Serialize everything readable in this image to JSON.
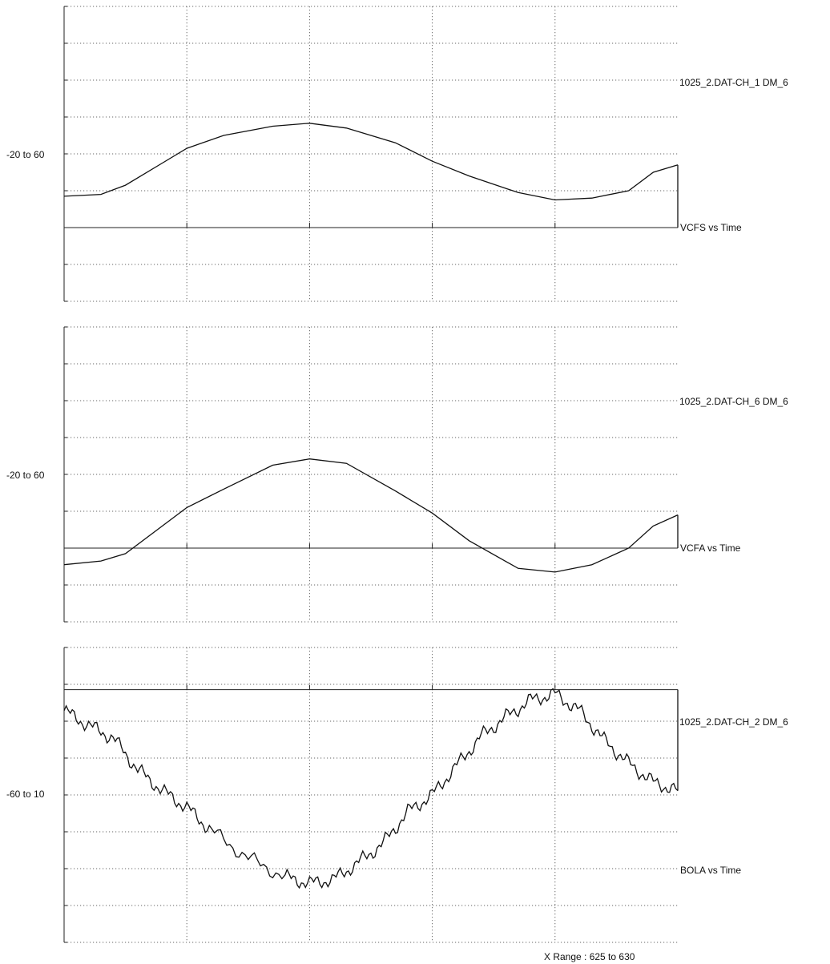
{
  "x_range_label": "X Range : 625 to 630",
  "panels": [
    {
      "range_label": "-20 to 60",
      "source_label": "1025_2.DAT-CH_1 DM_6",
      "title": "VCFS vs Time"
    },
    {
      "range_label": "-20 to 60",
      "source_label": "1025_2.DAT-CH_6 DM_6",
      "title": "VCFA vs Time"
    },
    {
      "range_label": "-60 to 10",
      "source_label": "1025_2.DAT-CH_2 DM_6",
      "title": "BOLA vs Time"
    }
  ],
  "chart_data": [
    {
      "type": "line",
      "title": "VCFS vs Time",
      "source": "1025_2.DAT-CH_1 DM_6",
      "xlim": [
        625,
        630
      ],
      "ylim": [
        -20,
        60
      ],
      "y_range_label": "-20 to 60",
      "grid": true,
      "baseline": 0,
      "x": [
        625.0,
        625.3,
        625.5,
        625.8,
        626.0,
        626.3,
        626.7,
        627.0,
        627.3,
        627.7,
        628.0,
        628.3,
        628.7,
        629.0,
        629.3,
        629.6,
        629.8,
        630.0
      ],
      "y": [
        8.5,
        9.0,
        11.5,
        17.5,
        21.5,
        25.0,
        27.5,
        28.3,
        27.0,
        23.0,
        18.0,
        14.0,
        9.5,
        7.5,
        8.0,
        10.0,
        15.0,
        17.0
      ]
    },
    {
      "type": "line",
      "title": "VCFA vs Time",
      "source": "1025_2.DAT-CH_6 DM_6",
      "xlim": [
        625,
        630
      ],
      "ylim": [
        -20,
        60
      ],
      "y_range_label": "-20 to 60",
      "grid": true,
      "baseline": 0,
      "x": [
        625.0,
        625.3,
        625.5,
        625.8,
        626.0,
        626.3,
        626.7,
        627.0,
        627.3,
        627.7,
        628.0,
        628.3,
        628.7,
        629.0,
        629.3,
        629.6,
        629.8,
        630.0
      ],
      "y": [
        -4.5,
        -3.5,
        -1.5,
        6.0,
        11.0,
        16.0,
        22.5,
        24.2,
        23.0,
        15.5,
        9.5,
        2.0,
        -5.5,
        -6.5,
        -4.5,
        0.0,
        6.0,
        9.0
      ]
    },
    {
      "type": "line",
      "title": "BOLA vs Time",
      "source": "1025_2.DAT-CH_2 DM_6",
      "xlim": [
        625,
        630
      ],
      "ylim": [
        -60,
        10
      ],
      "y_range_label": "-60 to 10",
      "grid": true,
      "baseline": 0,
      "x": [
        625.0,
        625.2,
        625.4,
        625.6,
        625.8,
        626.0,
        626.2,
        626.5,
        626.8,
        627.0,
        627.2,
        627.4,
        627.6,
        627.8,
        628.0,
        628.2,
        628.4,
        628.6,
        628.8,
        629.0,
        629.2,
        629.4,
        629.6,
        629.8,
        630.0
      ],
      "y": [
        -5.0,
        -8.5,
        -11.5,
        -19.0,
        -24.0,
        -28.0,
        -33.5,
        -40.0,
        -44.5,
        -46.0,
        -45.0,
        -41.0,
        -36.5,
        -29.0,
        -25.0,
        -18.0,
        -11.0,
        -6.5,
        -2.5,
        -1.0,
        -5.0,
        -12.0,
        -17.5,
        -22.0,
        -24.0
      ]
    }
  ]
}
